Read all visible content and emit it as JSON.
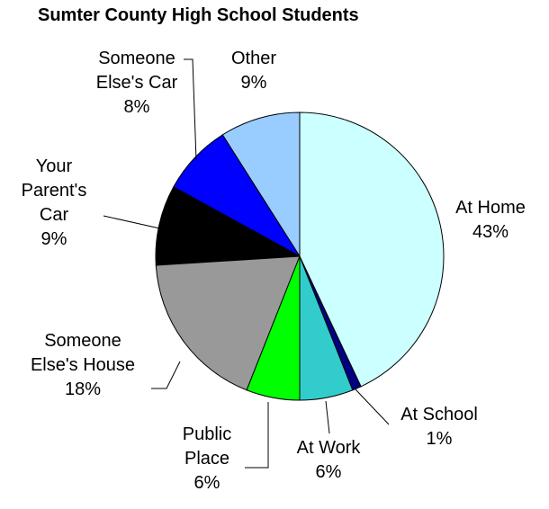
{
  "chart_data": {
    "type": "pie",
    "title": "Sumter County High School Students",
    "categories": [
      "At Home",
      "At School",
      "At Work",
      "Public Place",
      "Someone Else's House",
      "Your Parent's Car",
      "Someone Else's Car",
      "Other"
    ],
    "values": [
      43,
      1,
      6,
      6,
      18,
      9,
      8,
      9
    ],
    "value_labels": [
      "43%",
      "1%",
      "6%",
      "6%",
      "18%",
      "9%",
      "8%",
      "9%"
    ],
    "colors": [
      "#ccffff",
      "#000080",
      "#33cccc",
      "#00ff00",
      "#999999",
      "#000000",
      "#0000ff",
      "#99ccff"
    ]
  }
}
